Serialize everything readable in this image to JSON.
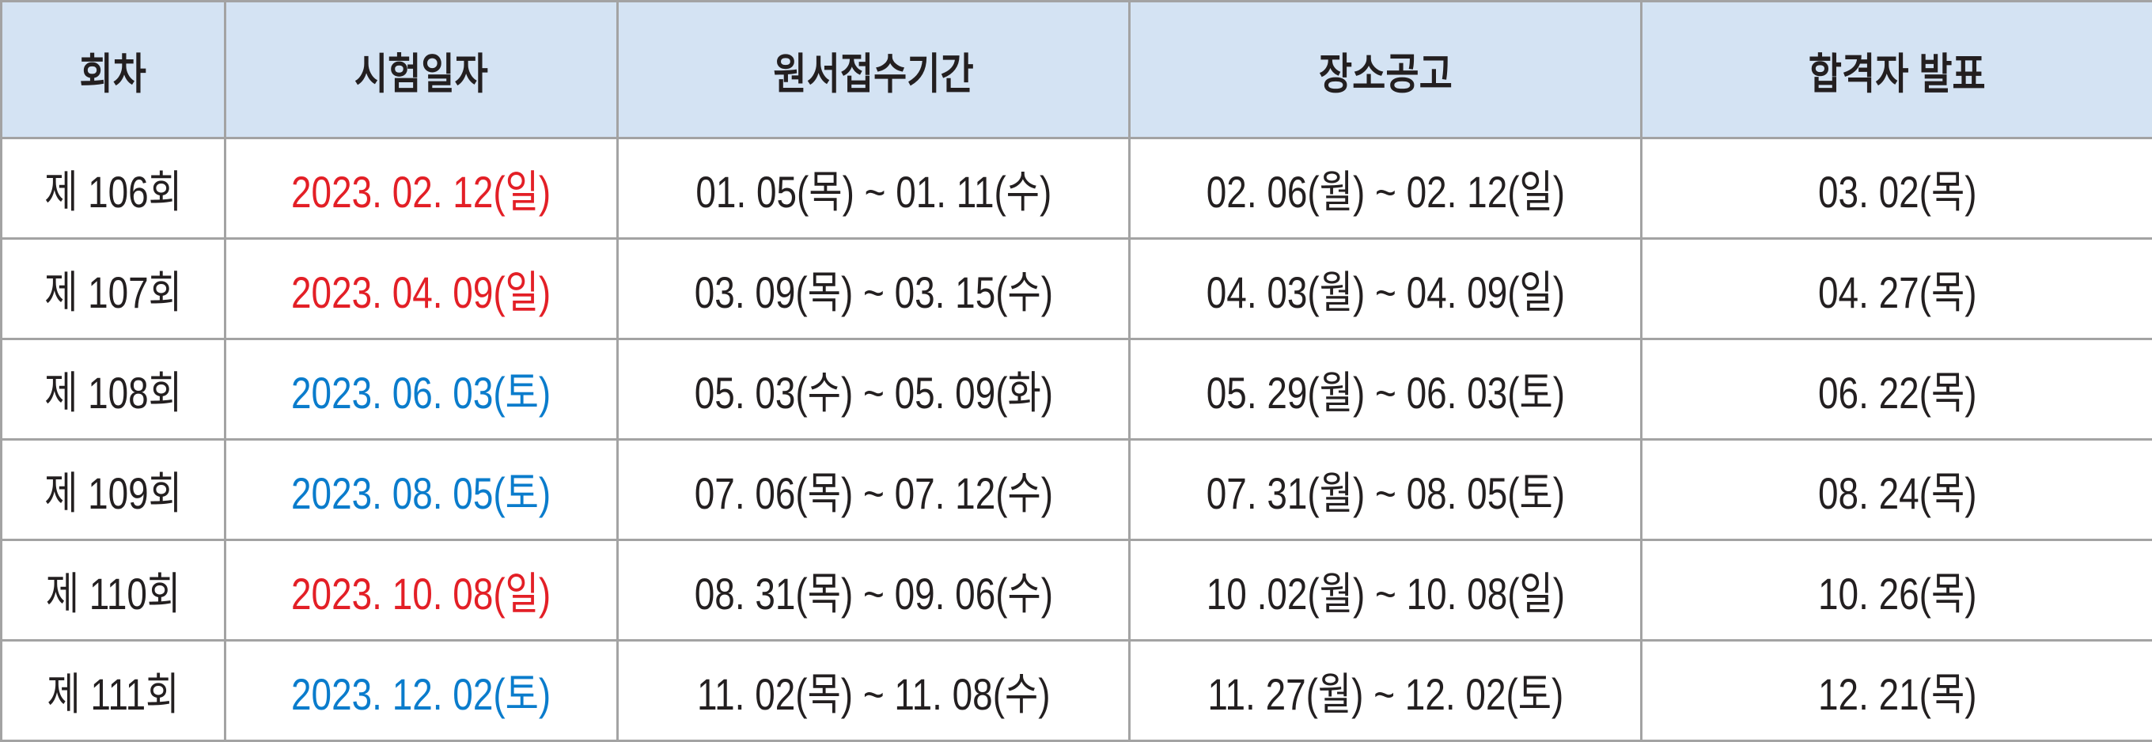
{
  "colors": {
    "header_bg": "#d4e3f3",
    "sunday": "#e31f26",
    "saturday": "#0a7ccc",
    "text": "#231f20",
    "border": "#a3a3a3"
  },
  "headers": [
    "회차",
    "시험일자",
    "원서접수기간",
    "장소공고",
    "합격자 발표"
  ],
  "rows": [
    {
      "round": "제 106회",
      "exam_date": "2023. 02. 12(일)",
      "date_type": "sunday",
      "application": "01. 05(목) ~ 01. 11(수)",
      "venue": "02. 06(월) ~ 02. 12(일)",
      "result": "03. 02(목)"
    },
    {
      "round": "제 107회",
      "exam_date": "2023. 04. 09(일)",
      "date_type": "sunday",
      "application": "03. 09(목) ~ 03. 15(수)",
      "venue": "04. 03(월) ~ 04. 09(일)",
      "result": "04. 27(목)"
    },
    {
      "round": "제 108회",
      "exam_date": "2023. 06. 03(토)",
      "date_type": "saturday",
      "application": "05. 03(수) ~ 05. 09(화)",
      "venue": "05. 29(월) ~ 06. 03(토)",
      "result": "06. 22(목)"
    },
    {
      "round": "제 109회",
      "exam_date": "2023. 08. 05(토)",
      "date_type": "saturday",
      "application": "07. 06(목) ~ 07. 12(수)",
      "venue": "07. 31(월) ~ 08. 05(토)",
      "result": "08. 24(목)"
    },
    {
      "round": "제 110회",
      "exam_date": "2023. 10. 08(일)",
      "date_type": "sunday",
      "application": "08. 31(목) ~ 09. 06(수)",
      "venue": "10 .02(월) ~ 10. 08(일)",
      "result": "10. 26(목)"
    },
    {
      "round": "제 111회",
      "exam_date": "2023. 12. 02(토)",
      "date_type": "saturday",
      "application": "11. 02(목) ~ 11. 08(수)",
      "venue": "11. 27(월) ~ 12. 02(토)",
      "result": "12. 21(목)"
    }
  ]
}
